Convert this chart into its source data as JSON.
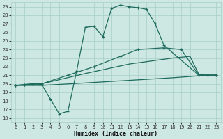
{
  "bg_color": "#cde8e2",
  "grid_color": "#a8cdc7",
  "line_color": "#1e6b5e",
  "xlabel": "Humidex (Indice chaleur)",
  "xlim": [
    -0.5,
    23.5
  ],
  "ylim": [
    15.5,
    29.5
  ],
  "xticks": [
    0,
    1,
    2,
    3,
    4,
    5,
    6,
    7,
    8,
    9,
    10,
    11,
    12,
    13,
    14,
    15,
    16,
    17,
    18,
    19,
    20,
    21,
    22,
    23
  ],
  "yticks": [
    16,
    17,
    18,
    19,
    20,
    21,
    22,
    23,
    24,
    25,
    26,
    27,
    28,
    29
  ],
  "line1_x": [
    0,
    1,
    2,
    3,
    4,
    5,
    6,
    7,
    8,
    9,
    10,
    11,
    12,
    13,
    14,
    15,
    16,
    17,
    21,
    22,
    23
  ],
  "line1_y": [
    19.8,
    19.9,
    20.0,
    19.9,
    18.2,
    16.5,
    16.8,
    21.5,
    26.6,
    26.7,
    25.5,
    28.8,
    29.2,
    29.0,
    28.9,
    28.7,
    27.0,
    24.5,
    21.0,
    21.0,
    21.0
  ],
  "line1_markers": [
    0,
    1,
    2,
    3,
    4,
    5,
    6,
    7,
    8,
    9,
    10,
    11,
    12,
    13,
    14,
    15,
    16,
    17,
    21,
    22,
    23
  ],
  "line2_x": [
    0,
    1,
    2,
    3,
    6,
    9,
    12,
    14,
    17,
    19,
    21,
    22,
    23
  ],
  "line2_y": [
    19.8,
    19.9,
    20.0,
    20.0,
    21.0,
    22.0,
    23.2,
    24.0,
    24.2,
    24.0,
    21.0,
    21.0,
    21.0
  ],
  "line3_x": [
    0,
    3,
    8,
    13,
    18,
    20,
    21,
    22,
    23
  ],
  "line3_y": [
    19.8,
    20.0,
    21.2,
    22.3,
    23.0,
    23.2,
    21.1,
    21.0,
    21.0
  ],
  "line4_x": [
    0,
    3,
    8,
    13,
    18,
    22,
    23
  ],
  "line4_y": [
    19.8,
    19.8,
    20.1,
    20.4,
    20.7,
    21.0,
    21.0
  ]
}
